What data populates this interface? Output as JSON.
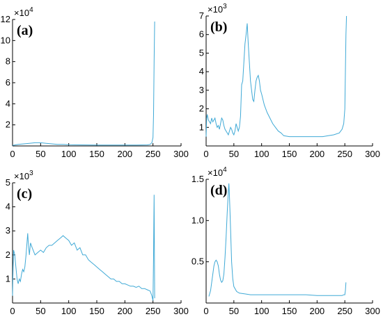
{
  "chart_data": [
    {
      "type": "line",
      "panel_label": "(a)",
      "multiplier": {
        "base": "×10",
        "exp": "4"
      },
      "xlim": [
        0,
        300
      ],
      "ylim": [
        0,
        12
      ],
      "xticks": [
        "0",
        "50",
        "100",
        "150",
        "200",
        "250",
        "300"
      ],
      "yticks": [
        {
          "v": 2,
          "label": "2"
        },
        {
          "v": 4,
          "label": "4"
        },
        {
          "v": 6,
          "label": "6"
        },
        {
          "v": 8,
          "label": "8"
        },
        {
          "v": 10,
          "label": "10"
        },
        {
          "v": 12,
          "label": "12"
        }
      ],
      "color": "#3fa9d6",
      "series": [
        {
          "x": [
            0,
            5,
            10,
            20,
            30,
            40,
            50,
            60,
            70,
            80,
            90,
            100,
            120,
            150,
            180,
            200,
            220,
            240,
            245,
            248,
            250,
            251,
            252,
            253
          ],
          "y": [
            0.05,
            0.1,
            0.15,
            0.2,
            0.25,
            0.3,
            0.3,
            0.25,
            0.2,
            0.15,
            0.15,
            0.12,
            0.1,
            0.08,
            0.08,
            0.08,
            0.08,
            0.1,
            0.15,
            0.3,
            0.8,
            3.0,
            8.0,
            11.8
          ]
        }
      ]
    },
    {
      "type": "line",
      "panel_label": "(b)",
      "multiplier": {
        "base": "×10",
        "exp": "3"
      },
      "xlim": [
        0,
        300
      ],
      "ylim": [
        0,
        7
      ],
      "xticks": [
        "0",
        "50",
        "100",
        "150",
        "200",
        "250",
        "300"
      ],
      "yticks": [
        {
          "v": 1,
          "label": "1"
        },
        {
          "v": 2,
          "label": "2"
        },
        {
          "v": 3,
          "label": "3"
        },
        {
          "v": 4,
          "label": "4"
        },
        {
          "v": 5,
          "label": "5"
        },
        {
          "v": 6,
          "label": "6"
        },
        {
          "v": 7,
          "label": "7"
        }
      ],
      "color": "#3fa9d6",
      "series": [
        {
          "x": [
            0,
            1,
            2,
            4,
            6,
            8,
            10,
            12,
            14,
            16,
            18,
            20,
            22,
            24,
            26,
            28,
            30,
            32,
            34,
            36,
            38,
            40,
            42,
            44,
            46,
            48,
            50,
            52,
            54,
            56,
            58,
            60,
            62,
            64,
            66,
            68,
            70,
            72,
            74,
            76,
            78,
            80,
            82,
            84,
            86,
            88,
            90,
            92,
            94,
            96,
            98,
            100,
            105,
            110,
            115,
            120,
            125,
            130,
            135,
            140,
            150,
            160,
            170,
            180,
            190,
            200,
            210,
            220,
            230,
            240,
            245,
            248,
            250,
            251,
            252,
            253
          ],
          "y": [
            0.5,
            1.5,
            1.7,
            1.4,
            1.3,
            1.2,
            1.5,
            1.3,
            1.4,
            1.5,
            1.2,
            1.0,
            1.1,
            0.9,
            1.2,
            1.5,
            1.4,
            1.1,
            0.9,
            0.8,
            0.7,
            0.6,
            0.8,
            1.0,
            0.9,
            0.7,
            0.6,
            0.8,
            1.2,
            1.0,
            0.8,
            1.0,
            1.6,
            3.3,
            3.5,
            4.5,
            5.5,
            6.0,
            6.6,
            5.5,
            4.5,
            3.5,
            3.0,
            2.5,
            2.4,
            3.0,
            3.5,
            3.7,
            3.8,
            3.5,
            3.0,
            2.8,
            2.2,
            1.8,
            1.5,
            1.2,
            1.0,
            0.8,
            0.7,
            0.55,
            0.5,
            0.5,
            0.5,
            0.5,
            0.5,
            0.5,
            0.5,
            0.55,
            0.6,
            0.7,
            0.9,
            1.2,
            2.0,
            4.0,
            6.0,
            7.0
          ]
        }
      ]
    },
    {
      "type": "line",
      "panel_label": "(c)",
      "multiplier": {
        "base": "×10",
        "exp": "3"
      },
      "xlim": [
        0,
        300
      ],
      "ylim": [
        0,
        5
      ],
      "xticks": [
        "0",
        "50",
        "100",
        "150",
        "200",
        "250",
        "300"
      ],
      "yticks": [
        {
          "v": 1,
          "label": "1"
        },
        {
          "v": 2,
          "label": "2"
        },
        {
          "v": 3,
          "label": "3"
        },
        {
          "v": 4,
          "label": "4"
        },
        {
          "v": 5,
          "label": "5"
        }
      ],
      "color": "#3fa9d6",
      "series": [
        {
          "x": [
            0,
            1,
            2,
            4,
            6,
            8,
            10,
            12,
            14,
            16,
            18,
            20,
            22,
            24,
            26,
            27,
            28,
            30,
            32,
            35,
            40,
            45,
            50,
            55,
            60,
            65,
            70,
            75,
            80,
            85,
            90,
            95,
            100,
            105,
            110,
            115,
            120,
            125,
            130,
            135,
            140,
            145,
            150,
            155,
            160,
            165,
            170,
            175,
            180,
            185,
            190,
            195,
            200,
            205,
            210,
            215,
            220,
            225,
            230,
            235,
            240,
            245,
            248,
            250,
            251,
            252,
            253
          ],
          "y": [
            0.3,
            1.5,
            2.2,
            2.0,
            1.5,
            1.0,
            0.8,
            1.0,
            0.9,
            1.2,
            1.4,
            1.3,
            1.5,
            2.0,
            2.6,
            2.9,
            2.5,
            2.0,
            2.5,
            2.3,
            2.0,
            2.1,
            2.2,
            2.1,
            2.3,
            2.4,
            2.4,
            2.5,
            2.6,
            2.7,
            2.8,
            2.7,
            2.6,
            2.4,
            2.5,
            2.2,
            2.3,
            2.0,
            2.0,
            1.8,
            1.7,
            1.6,
            1.5,
            1.4,
            1.3,
            1.2,
            1.1,
            1.0,
            1.0,
            0.9,
            0.9,
            0.8,
            0.8,
            0.75,
            0.7,
            0.7,
            0.65,
            0.7,
            0.6,
            0.6,
            0.55,
            0.5,
            0.3,
            0.1,
            2.0,
            4.5,
            0.2
          ]
        }
      ]
    },
    {
      "type": "line",
      "panel_label": "(d)",
      "multiplier": {
        "base": "×10",
        "exp": "4"
      },
      "xlim": [
        0,
        300
      ],
      "ylim": [
        0,
        1.5
      ],
      "xticks": [
        "0",
        "50",
        "100",
        "150",
        "200",
        "250",
        "300"
      ],
      "yticks": [
        {
          "v": 0.5,
          "label": "0.5"
        },
        {
          "v": 1.0,
          "label": "1.0"
        },
        {
          "v": 1.5,
          "label": "1.5"
        }
      ],
      "color": "#3fa9d6",
      "series": [
        {
          "x": [
            5,
            8,
            10,
            12,
            14,
            16,
            18,
            20,
            22,
            24,
            26,
            28,
            30,
            32,
            34,
            36,
            38,
            40,
            41,
            42,
            44,
            46,
            48,
            50,
            55,
            60,
            70,
            80,
            100,
            120,
            140,
            160,
            180,
            200,
            220,
            240,
            245,
            248,
            250,
            251,
            252
          ],
          "y": [
            0.08,
            0.15,
            0.25,
            0.35,
            0.45,
            0.5,
            0.52,
            0.5,
            0.45,
            0.35,
            0.28,
            0.25,
            0.27,
            0.35,
            0.55,
            0.8,
            1.1,
            1.35,
            1.45,
            1.3,
            0.9,
            0.5,
            0.3,
            0.2,
            0.14,
            0.12,
            0.11,
            0.1,
            0.1,
            0.1,
            0.1,
            0.1,
            0.1,
            0.09,
            0.09,
            0.09,
            0.09,
            0.1,
            0.1,
            0.15,
            0.25
          ]
        }
      ]
    }
  ]
}
